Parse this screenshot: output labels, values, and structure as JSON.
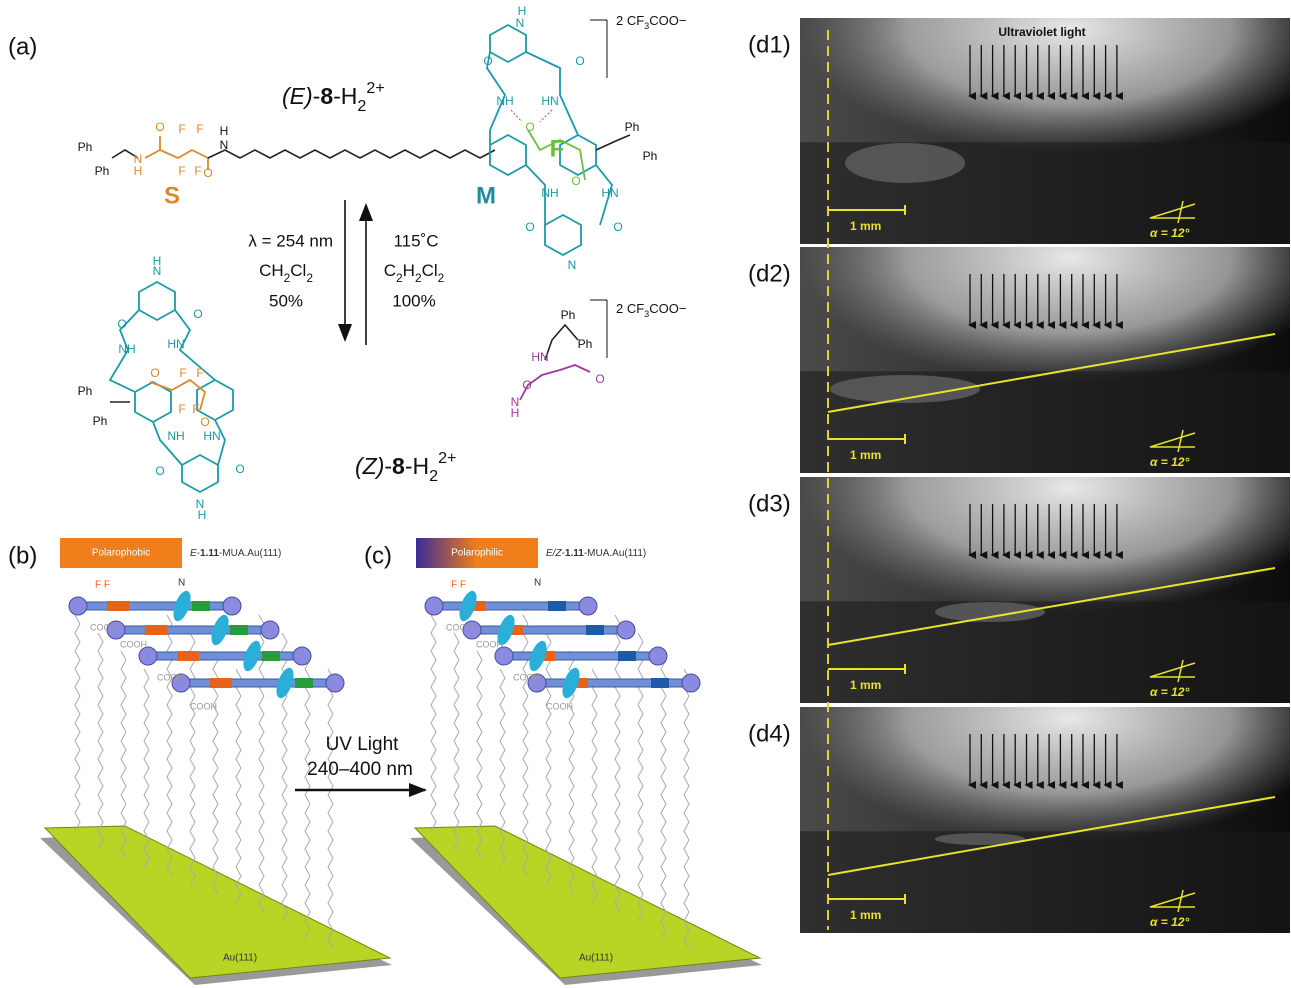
{
  "panel_a": {
    "label": "(a)",
    "e_isomer": [
      "(E)",
      "-",
      "8",
      "-H",
      "2",
      "2+"
    ],
    "z_isomer": [
      "(Z)",
      "-",
      "8",
      "-H",
      "2",
      "2+"
    ],
    "counter_ion": [
      "2 CF",
      "3",
      "COO",
      "−"
    ],
    "forward": {
      "wavelength": "λ = 254 nm",
      "solvent": [
        "CH",
        "2",
        "Cl",
        "2"
      ],
      "yield": "50%"
    },
    "reverse": {
      "temperature": "115˚C",
      "solvent": [
        "C",
        "2",
        "H",
        "2",
        "Cl",
        "2"
      ],
      "yield": "100%"
    },
    "fragments": [
      "S",
      "M",
      "F"
    ],
    "atoms_e": [
      "Ph",
      "Ph",
      "N",
      "H",
      "O",
      "F",
      "F",
      "F",
      "F",
      "O",
      "H",
      "N",
      "N",
      "O",
      "O",
      "NH",
      "HN",
      "O",
      "O",
      "HN",
      "NH",
      "O",
      "O",
      "N",
      "Ph",
      "Ph",
      "H"
    ],
    "atoms_z": [
      "N",
      "H",
      "O",
      "O",
      "NH",
      "HN",
      "O",
      "F",
      "F",
      "F",
      "F",
      "O",
      "Ph",
      "Ph",
      "NH",
      "HN",
      "O",
      "O",
      "N",
      "H",
      "Ph",
      "Ph",
      "HN",
      "O",
      "O",
      "N",
      "H"
    ]
  },
  "panel_b": {
    "label": "(b)",
    "tag": "Polarophobic",
    "caption": [
      "E",
      "-",
      "1.11",
      "-MUA.Au(111)"
    ],
    "small_labels": [
      "F F",
      "N",
      "COOH",
      "COOH",
      "COOH",
      "COOH"
    ],
    "substrate": "Au(111)"
  },
  "panel_c": {
    "label": "(c)",
    "tag": "Polarophilic",
    "caption": [
      "E/Z",
      "-",
      "1.11",
      "-MUA.Au(111)"
    ],
    "small_labels": [
      "F F",
      "N",
      "COOH",
      "COOH",
      "COOH",
      "COOH"
    ],
    "substrate": "Au(111)"
  },
  "uv_arrow": [
    "UV Light",
    "240–400 nm"
  ],
  "panel_d": {
    "header": "Ultraviolet light",
    "frames": [
      {
        "label": "(d1)",
        "scale": "1 mm",
        "angle": "α = 12°"
      },
      {
        "label": "(d2)",
        "scale": "1 mm",
        "angle": "α = 12°"
      },
      {
        "label": "(d3)",
        "scale": "1 mm",
        "angle": "α = 12°"
      },
      {
        "label": "(d4)",
        "scale": "1 mm",
        "angle": "α = 12°"
      }
    ]
  }
}
